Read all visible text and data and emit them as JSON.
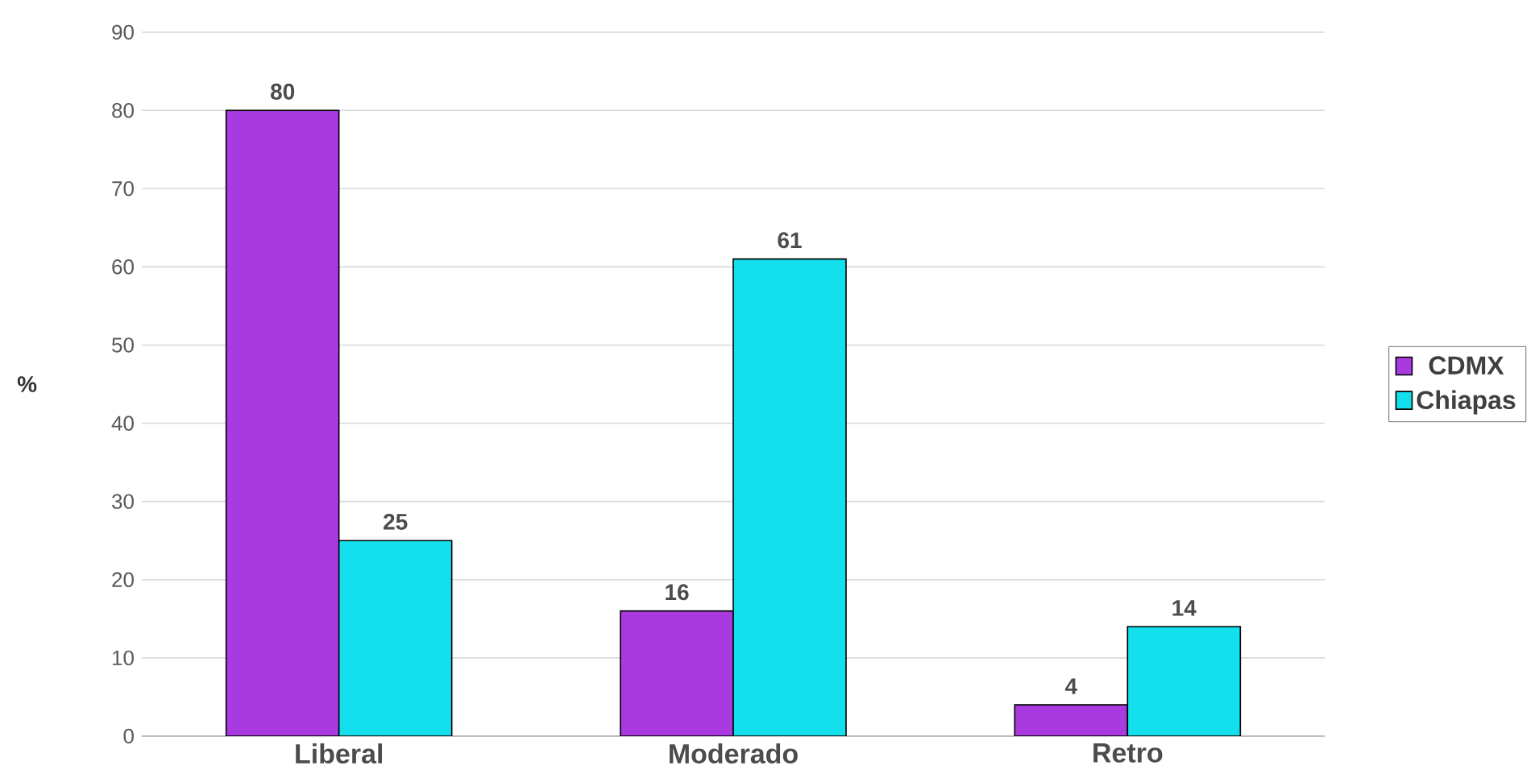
{
  "chart_data": {
    "type": "bar",
    "ylabel": "%",
    "categories": [
      "Liberal",
      "Moderado",
      "Retro"
    ],
    "series": [
      {
        "name": "CDMX",
        "color": "#a93ae0",
        "values": [
          80,
          16,
          4
        ]
      },
      {
        "name": "Chiapas",
        "color": "#13e0ec",
        "values": [
          25,
          61,
          14
        ]
      }
    ],
    "ylim": [
      0,
      90
    ],
    "yticks": [
      0,
      10,
      20,
      30,
      40,
      50,
      60,
      70,
      80,
      90
    ],
    "grid": "y",
    "legend": "right",
    "data_labels": true
  }
}
